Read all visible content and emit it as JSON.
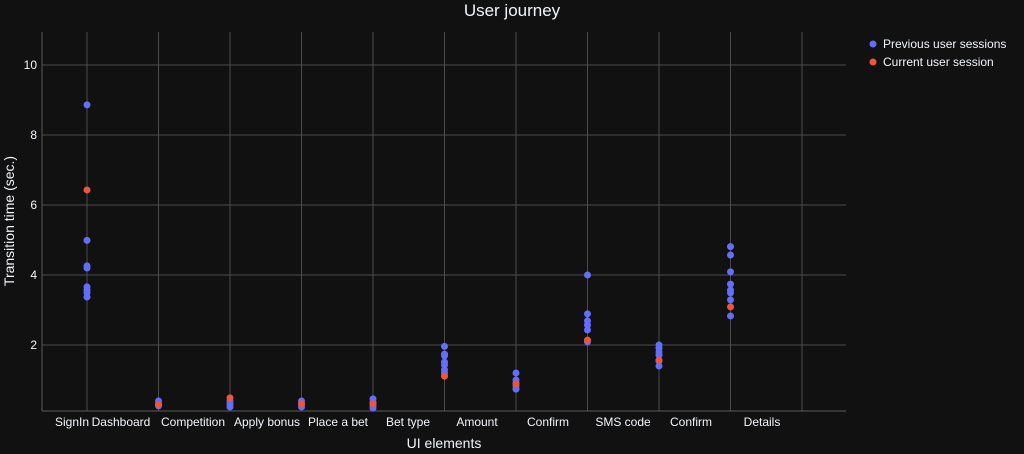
{
  "chart_data": {
    "type": "scatter",
    "title": "User journey",
    "xlabel": "UI elements",
    "ylabel": "Transition time (sec.)",
    "categories": [
      "SignIn",
      "Dashboard",
      "Competition",
      "Apply bonus",
      "Place a bet",
      "Bet type",
      "Amount",
      "Confirm",
      "SMS code",
      "Confirm",
      "Details"
    ],
    "yticks": [
      2,
      4,
      6,
      8,
      10
    ],
    "ylim": [
      0,
      10.9
    ],
    "grid": true,
    "legend_position": "top-right-outside",
    "series": [
      {
        "name": "Previous user sessions",
        "color": "#636efa",
        "points": [
          {
            "x": 0,
            "y": [
              8.86,
              4.99,
              4.26,
              4.2,
              3.66,
              3.57,
              3.49,
              3.37
            ]
          },
          {
            "x": 1,
            "y": [
              0.4,
              0.31,
              0.26
            ]
          },
          {
            "x": 2,
            "y": [
              0.4,
              0.31,
              0.23
            ]
          },
          {
            "x": 3,
            "y": [
              0.4,
              0.31,
              0.23
            ]
          },
          {
            "x": 4,
            "y": [
              0.46,
              0.37,
              0.26,
              0.2
            ]
          },
          {
            "x": 5,
            "y": [
              1.96,
              1.74,
              1.69,
              1.51,
              1.43,
              1.29,
              1.2
            ]
          },
          {
            "x": 6,
            "y": [
              1.2,
              1.0,
              0.91,
              0.83,
              0.74
            ]
          },
          {
            "x": 7,
            "y": [
              4.0,
              2.89,
              2.69,
              2.57,
              2.43,
              2.09
            ]
          },
          {
            "x": 8,
            "y": [
              2.0,
              1.91,
              1.8,
              1.71,
              1.54,
              1.4
            ]
          },
          {
            "x": 9,
            "y": [
              4.81,
              4.57,
              4.09,
              3.74,
              3.57,
              3.49,
              3.29,
              2.83
            ]
          }
        ]
      },
      {
        "name": "Current user session",
        "color": "#ef553b",
        "points": [
          {
            "x": 0,
            "y": [
              6.43
            ]
          },
          {
            "x": 1,
            "y": [
              0.29
            ]
          },
          {
            "x": 2,
            "y": [
              0.49
            ]
          },
          {
            "x": 3,
            "y": [
              0.32
            ]
          },
          {
            "x": 4,
            "y": [
              0.32
            ]
          },
          {
            "x": 5,
            "y": [
              1.11
            ]
          },
          {
            "x": 6,
            "y": [
              0.89
            ]
          },
          {
            "x": 7,
            "y": [
              2.14
            ]
          },
          {
            "x": 8,
            "y": [
              1.57
            ]
          },
          {
            "x": 9,
            "y": [
              3.09
            ]
          }
        ]
      }
    ]
  },
  "colors": {
    "background": "#111111",
    "grid": "#4a4a4a",
    "text": "#f2f5fa"
  }
}
